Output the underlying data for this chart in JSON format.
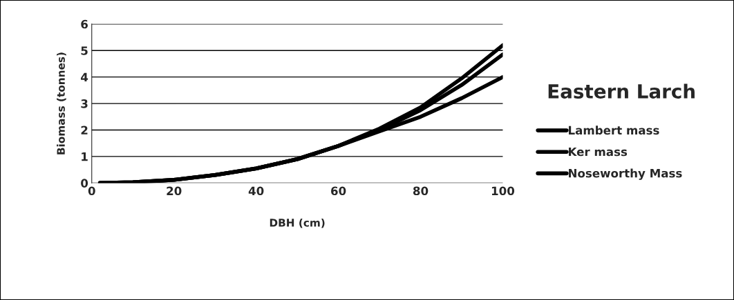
{
  "chart_data": {
    "type": "line",
    "title": "Eastern Larch",
    "xlabel": "DBH (cm)",
    "ylabel": "Biomass (tonnes)",
    "x": [
      2,
      10,
      20,
      30,
      40,
      50,
      60,
      70,
      80,
      90,
      100
    ],
    "series": [
      {
        "name": "Lambert mass",
        "color": "#000000",
        "values": [
          0,
          0.03,
          0.12,
          0.3,
          0.55,
          0.9,
          1.4,
          2.05,
          2.85,
          3.95,
          5.2
        ]
      },
      {
        "name": "Ker mass",
        "color": "#000000",
        "values": [
          0,
          0.03,
          0.12,
          0.3,
          0.55,
          0.9,
          1.4,
          2.0,
          2.75,
          3.7,
          4.85
        ]
      },
      {
        "name": "Noseworthy Mass",
        "color": "#000000",
        "values": [
          0,
          0.03,
          0.12,
          0.3,
          0.55,
          0.9,
          1.4,
          1.95,
          2.5,
          3.2,
          4.0
        ]
      }
    ],
    "xlim": [
      0,
      100
    ],
    "xticks": [
      0,
      20,
      40,
      60,
      80,
      100
    ],
    "ylim": [
      0,
      6
    ],
    "yticks": [
      0,
      1,
      2,
      3,
      4,
      5,
      6
    ],
    "grid": "y",
    "legend": "right",
    "marker": "none",
    "line_style": "solid"
  }
}
